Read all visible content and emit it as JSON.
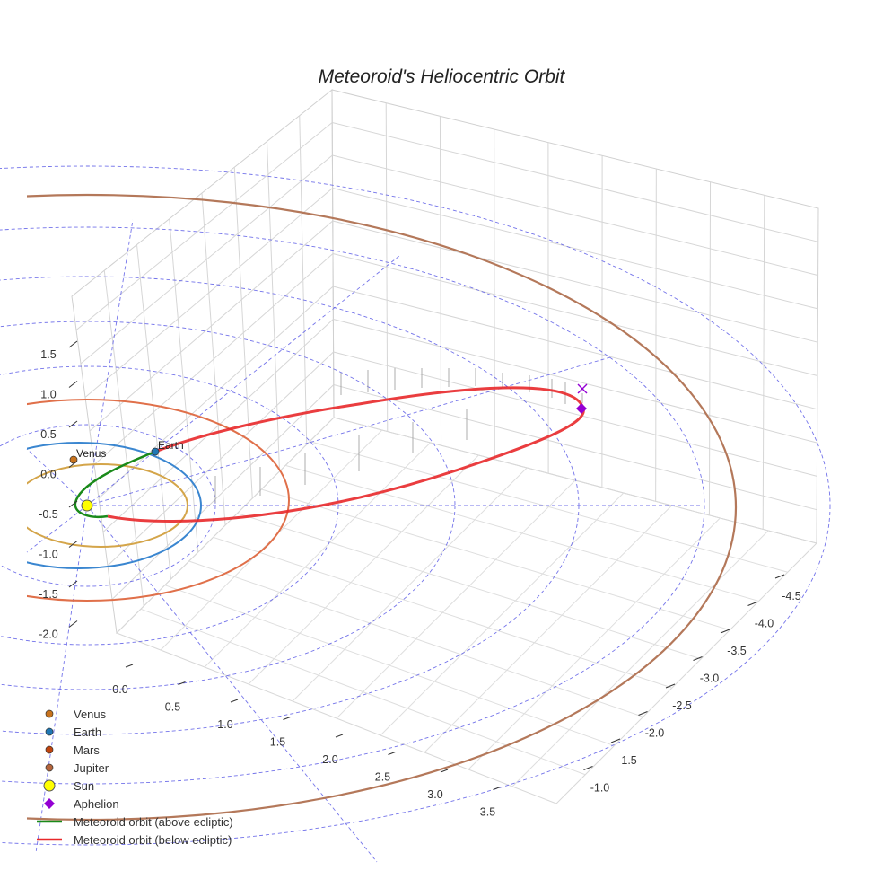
{
  "chart_data": {
    "type": "line",
    "title": "Meteoroid's Heliocentric Orbit",
    "x_axis": {
      "ticks": [
        "0.0",
        "0.5",
        "1.0",
        "1.5",
        "2.0",
        "2.5",
        "3.0",
        "3.5"
      ]
    },
    "y_axis": {
      "ticks": [
        "-4.5",
        "-4.0",
        "-3.5",
        "-3.0",
        "-2.5",
        "-2.0",
        "-1.5",
        "-1.0"
      ]
    },
    "z_axis": {
      "ticks": [
        "1.5",
        "1.0",
        "0.5",
        "0.0",
        "-0.5",
        "-1.0",
        "-1.5",
        "-2.0"
      ]
    },
    "grid": true,
    "bodies": [
      {
        "name": "Venus",
        "label": "Venus",
        "color": "#c8731e"
      },
      {
        "name": "Earth",
        "label": "Earth",
        "color": "#1f77b4"
      },
      {
        "name": "Mars",
        "color": "#c1440e"
      },
      {
        "name": "Jupiter",
        "color": "#b4643c"
      },
      {
        "name": "Sun",
        "color": "#ffff00"
      }
    ],
    "orbits": [
      {
        "name": "Venus orbit",
        "color": "#d4a54a"
      },
      {
        "name": "Earth orbit",
        "color": "#3a86d0"
      },
      {
        "name": "Mars orbit",
        "color": "#e0704a"
      },
      {
        "name": "Jupiter orbit",
        "color": "#b4785a"
      }
    ],
    "series": [
      {
        "name": "Meteoroid orbit (above ecliptic)",
        "color": "#1a8a1a"
      },
      {
        "name": "Meteoroid orbit (below ecliptic)",
        "color": "#e8282a"
      }
    ],
    "aphelion": {
      "name": "Aphelion",
      "color": "#9400d3"
    },
    "legend_position": "bottom-left"
  },
  "legend": [
    {
      "label": "Venus",
      "kind": "dot",
      "color": "#c8731e"
    },
    {
      "label": "Earth",
      "kind": "dot",
      "color": "#1f77b4"
    },
    {
      "label": "Mars",
      "kind": "dot",
      "color": "#c1440e"
    },
    {
      "label": "Jupiter",
      "kind": "dot",
      "color": "#b4643c"
    },
    {
      "label": "Sun",
      "kind": "sun",
      "color": "#ffff00"
    },
    {
      "label": "Aphelion",
      "kind": "diamond",
      "color": "#9400d3"
    },
    {
      "label": "Meteoroid orbit (above ecliptic)",
      "kind": "line",
      "color": "#1a8a1a"
    },
    {
      "label": "Meteoroid orbit (below ecliptic)",
      "kind": "line",
      "color": "#e8282a"
    }
  ]
}
